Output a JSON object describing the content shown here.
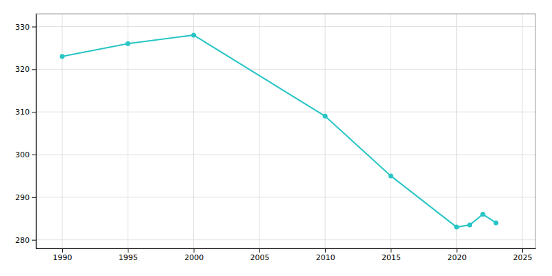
{
  "chart_data": {
    "type": "line",
    "x": [
      1990,
      1995,
      2000,
      2010,
      2015,
      2020,
      2021,
      2022,
      2023
    ],
    "values": [
      323,
      326,
      328,
      309,
      295,
      283,
      283.5,
      286,
      284
    ],
    "color": "#29c5c5",
    "marker": "circle",
    "xlim": [
      1988,
      2026
    ],
    "ylim": [
      278,
      333
    ],
    "xticks": [
      1990,
      1995,
      2000,
      2005,
      2010,
      2015,
      2020,
      2025
    ],
    "yticks": [
      280,
      290,
      300,
      310,
      320,
      330
    ],
    "grid": true
  }
}
